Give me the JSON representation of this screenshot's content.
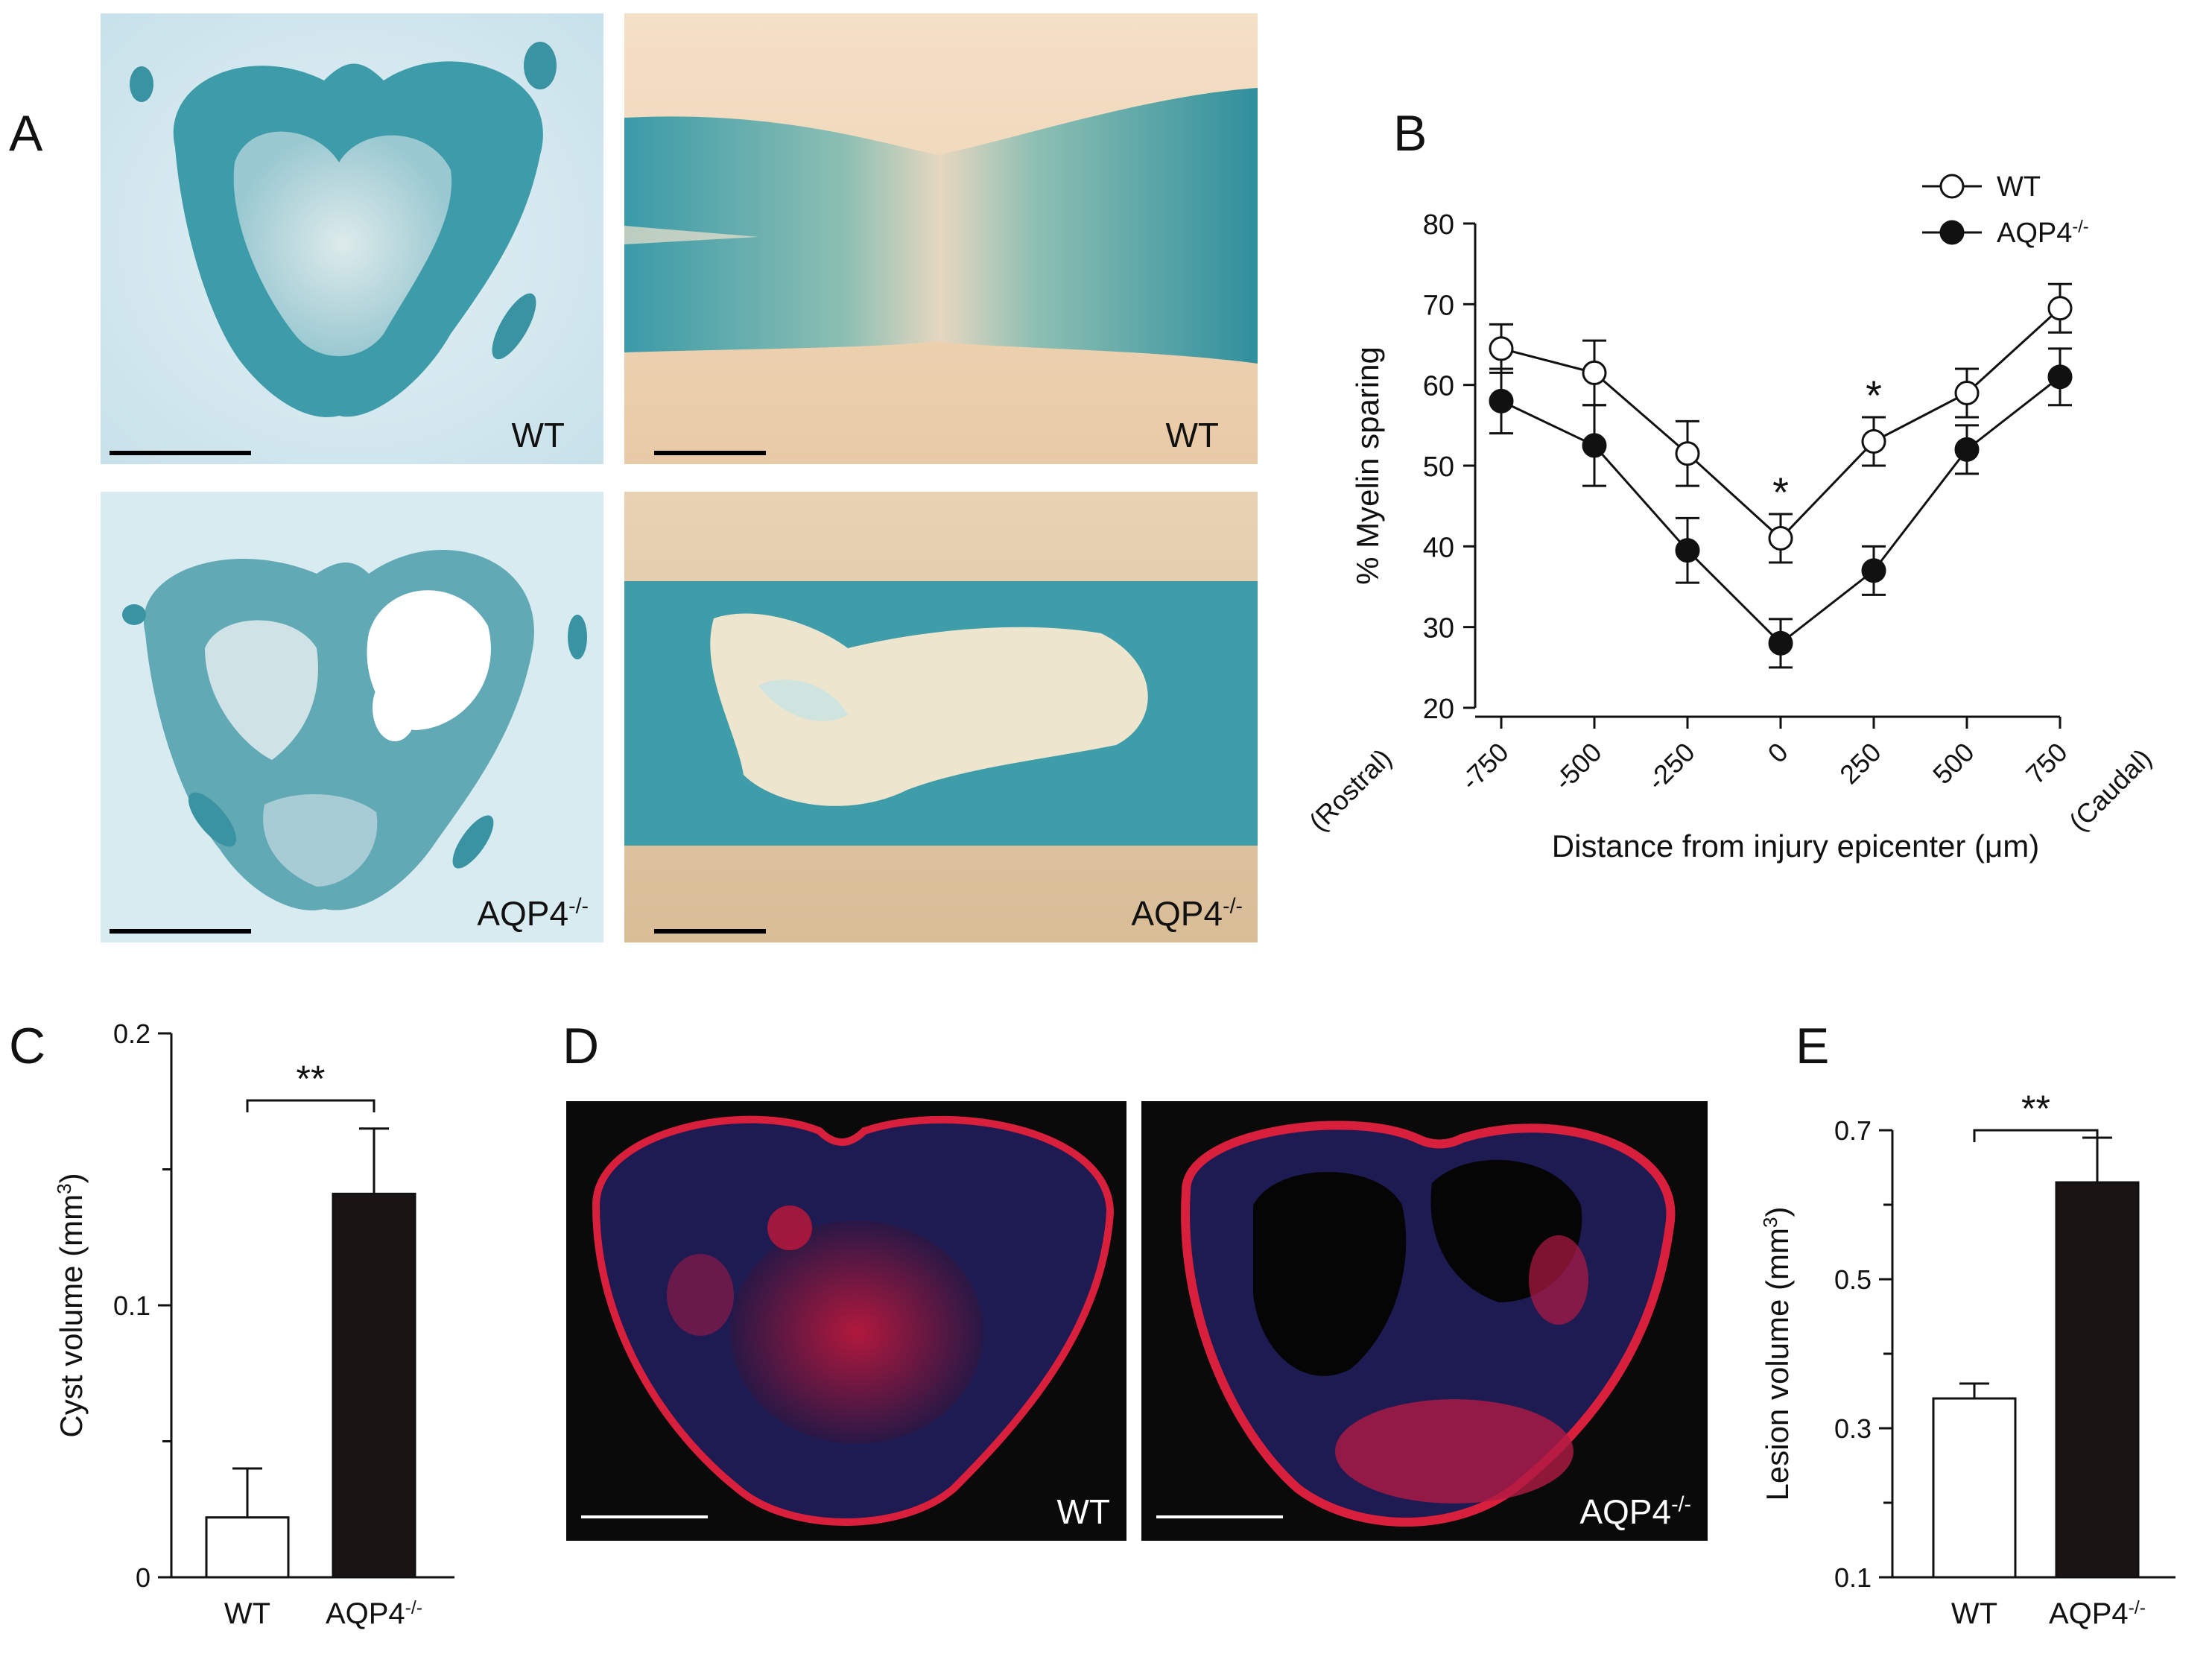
{
  "panels": {
    "A": {
      "letter": "A",
      "images": [
        {
          "label": "WT",
          "label_sup": ""
        },
        {
          "label": "WT",
          "label_sup": ""
        },
        {
          "label": "AQP4",
          "label_sup": "-/-"
        },
        {
          "label": "AQP4",
          "label_sup": "-/-"
        }
      ]
    },
    "D": {
      "letter": "D",
      "images": [
        {
          "label": "WT",
          "label_sup": ""
        },
        {
          "label": "AQP4",
          "label_sup": "-/-"
        }
      ]
    }
  },
  "colors": {
    "stain_blue": "#3a9aa8",
    "pale_blue": "#d6ebf0",
    "pale_peach": "#f2dcc3",
    "fluor_red": "#e8203a",
    "fluor_blue": "#3b5cc8",
    "bar_black": "#1b1414"
  },
  "chart_data": [
    {
      "panel": "B",
      "type": "line",
      "x": [
        -750,
        -500,
        -250,
        0,
        250,
        500,
        750
      ],
      "x_tick_labels": [
        "-750",
        "-500",
        "-250",
        "0",
        "250",
        "500",
        "750"
      ],
      "x_end_labels": [
        "(Rostral)",
        "(Caudal)"
      ],
      "xlabel": "Distance from injury epicenter (",
      "xlabel_unit": "μm",
      "xlabel_close": ")",
      "ylabel": "% Myelin sparing",
      "ylim": [
        20,
        80
      ],
      "y_ticks": [
        20,
        30,
        40,
        50,
        60,
        70,
        80
      ],
      "series": [
        {
          "name": "WT",
          "name_sup": "",
          "marker": "open",
          "values": [
            64.5,
            61.5,
            51.5,
            41.0,
            53.0,
            59.0,
            69.5
          ],
          "errors": [
            3.0,
            4.0,
            4.0,
            3.0,
            3.0,
            3.0,
            3.0
          ]
        },
        {
          "name": "AQP4",
          "name_sup": "-/-",
          "marker": "filled",
          "values": [
            58.0,
            52.5,
            39.5,
            28.0,
            37.0,
            52.0,
            61.0
          ],
          "errors": [
            4.0,
            5.0,
            4.0,
            3.0,
            3.0,
            3.0,
            3.5
          ]
        }
      ],
      "significance": [
        {
          "x": 0,
          "label": "*"
        },
        {
          "x": 250,
          "label": "*"
        }
      ],
      "legend_position": "top-right",
      "grid": false
    },
    {
      "panel": "C",
      "type": "bar",
      "categories": [
        "WT",
        "AQP4"
      ],
      "category_sups": [
        "",
        "-/-"
      ],
      "values": [
        0.022,
        0.141
      ],
      "errors": [
        0.018,
        0.024
      ],
      "fills": [
        "open",
        "filled"
      ],
      "ylabel": "Cyst volume (mm",
      "ylabel_sup": "3",
      "ylabel_close": ")",
      "ylim": [
        0,
        0.2
      ],
      "y_ticks": [
        0,
        0.1,
        0.2
      ],
      "y_tick_labels": [
        "0",
        "0.1",
        "0.2"
      ],
      "significance": "**",
      "grid": false
    },
    {
      "panel": "E",
      "type": "bar",
      "categories": [
        "WT",
        "AQP4"
      ],
      "category_sups": [
        "",
        "-/-"
      ],
      "values": [
        0.34,
        0.63
      ],
      "errors": [
        0.02,
        0.06
      ],
      "fills": [
        "open",
        "filled"
      ],
      "ylabel": "Lesion volume (mm",
      "ylabel_sup": "3",
      "ylabel_close": ")",
      "ylim": [
        0.1,
        0.7
      ],
      "y_ticks": [
        0.1,
        0.3,
        0.5,
        0.7
      ],
      "y_tick_labels": [
        "0.1",
        "0.3",
        "0.5",
        "0.7"
      ],
      "significance": "**",
      "grid": false
    }
  ]
}
